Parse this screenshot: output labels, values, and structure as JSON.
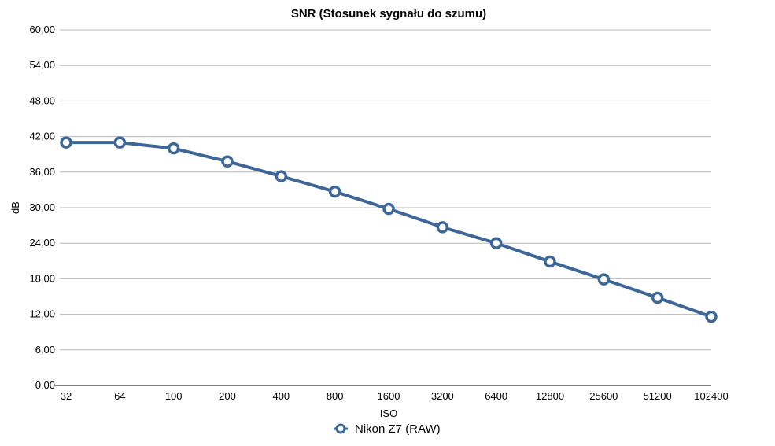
{
  "chart_data": {
    "type": "line",
    "title": "SNR (Stosunek sygnału do szumu)",
    "xlabel": "ISO",
    "ylabel": "dB",
    "categories": [
      "32",
      "64",
      "100",
      "200",
      "400",
      "800",
      "1600",
      "3200",
      "6400",
      "12800",
      "25600",
      "51200",
      "102400"
    ],
    "yticks": [
      "0,00",
      "6,00",
      "12,00",
      "18,00",
      "24,00",
      "30,00",
      "36,00",
      "42,00",
      "48,00",
      "54,00",
      "60,00"
    ],
    "ylim": [
      0,
      60
    ],
    "grid": true,
    "legend_position": "bottom",
    "series": [
      {
        "name": "Nikon Z7 (RAW)",
        "color": "#3d6799",
        "values": [
          41.0,
          41.0,
          40.0,
          37.8,
          35.3,
          32.7,
          29.8,
          26.7,
          24.0,
          20.9,
          17.9,
          14.8,
          11.6
        ]
      }
    ]
  }
}
